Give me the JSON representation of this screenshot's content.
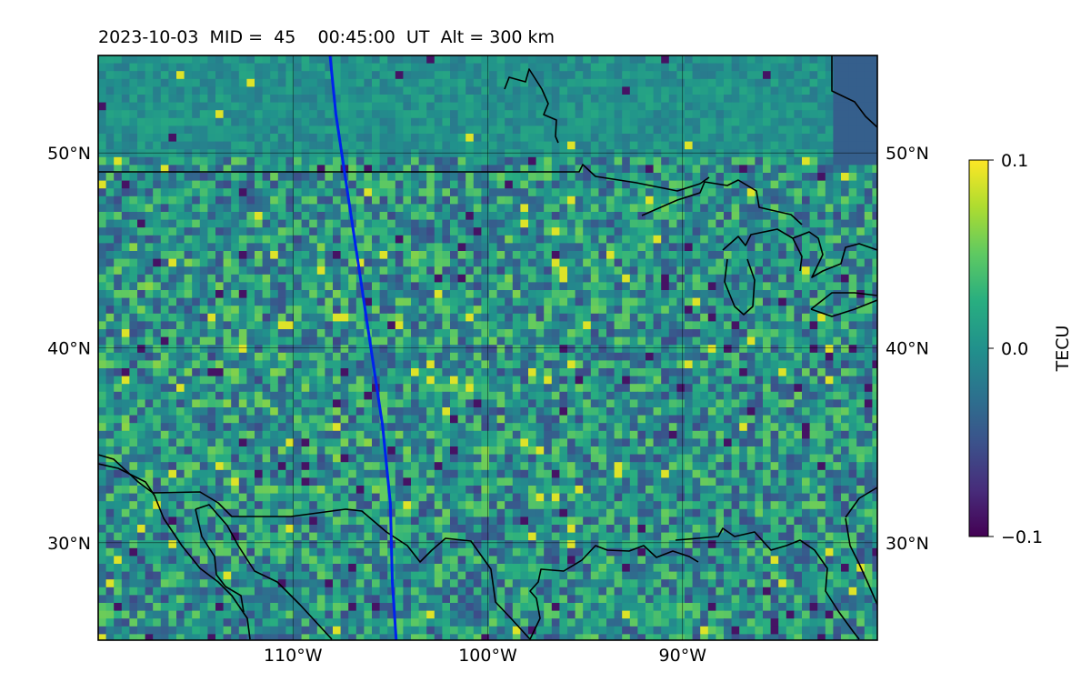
{
  "title": "2023-10-03  MID =  45    00:45:00  UT  Alt = 300 km",
  "map": {
    "lon_range": [
      -120,
      -80
    ],
    "lat_range": [
      25,
      55
    ],
    "lon_ticks": [
      {
        "value": -110,
        "label": "110°W"
      },
      {
        "value": -100,
        "label": "100°W"
      },
      {
        "value": -90,
        "label": "90°W"
      }
    ],
    "lat_ticks": [
      {
        "value": 50,
        "label": "50°N"
      },
      {
        "value": 40,
        "label": "40°N"
      },
      {
        "value": 30,
        "label": "30°N"
      }
    ],
    "gridlines": true,
    "track_color": "#0022ee",
    "track": [
      [
        -108.1,
        55
      ],
      [
        -107.8,
        52
      ],
      [
        -107.2,
        48
      ],
      [
        -106.6,
        44
      ],
      [
        -106.0,
        40
      ],
      [
        -105.4,
        36
      ],
      [
        -105.0,
        32
      ],
      [
        -104.9,
        28
      ],
      [
        -104.7,
        25
      ]
    ]
  },
  "colorbar": {
    "label": "TECU",
    "min": -0.1,
    "max": 0.1,
    "ticks": [
      {
        "value": 0.1,
        "label": "0.1"
      },
      {
        "value": 0.0,
        "label": "0.0"
      },
      {
        "value": -0.1,
        "label": "−0.1"
      }
    ],
    "colormap": "viridis"
  }
}
